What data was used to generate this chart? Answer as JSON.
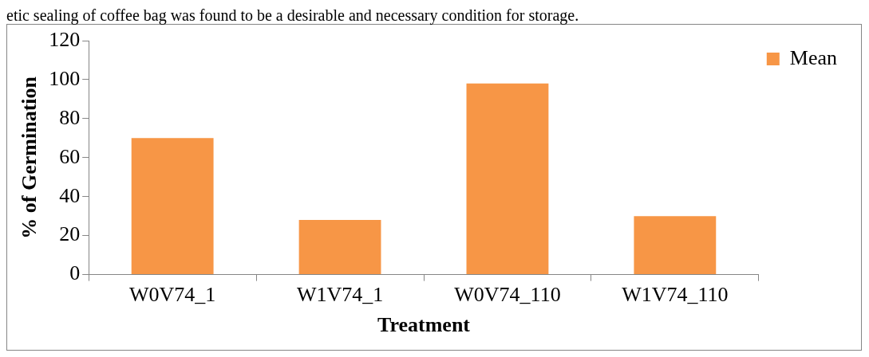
{
  "chart_data": {
    "type": "bar",
    "annotations": [
      "etic sealing of coffee bag was found to be a desirable and necessary condition for storage."
    ],
    "xlabel": "Treatment",
    "ylabel": "% of Germination",
    "categories": [
      "W0V74_1",
      "W1V74_1",
      "W0V74_110",
      "W1V74_110"
    ],
    "series": [
      {
        "name": "Mean",
        "color": "#f79646",
        "values": [
          70,
          28,
          98,
          30
        ]
      }
    ],
    "ylim": [
      0,
      120
    ],
    "yticks": [
      0,
      20,
      40,
      60,
      80,
      100,
      120
    ],
    "grid": false,
    "legend": "top right"
  }
}
